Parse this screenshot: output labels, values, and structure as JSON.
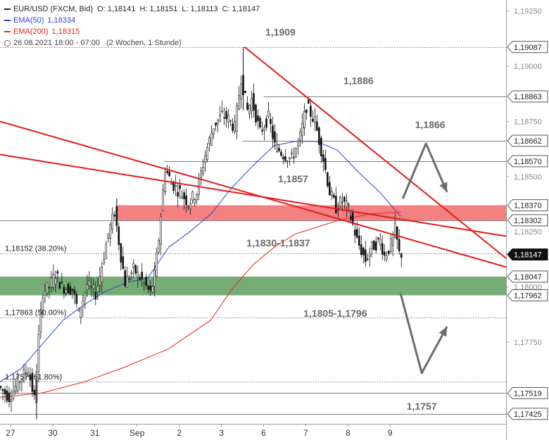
{
  "chart_data": {
    "type": "candlestick",
    "symbol": "EUR/USD (FXCM, Bid)",
    "ohlc_label": {
      "o": "O: 1,18141",
      "h": "H: 1,18151",
      "l": "L: 1,18113",
      "c": "C: 1,18147"
    },
    "indicators": [
      {
        "name": "EMA(50)",
        "value": "1,18334",
        "color": "#2a3fd6"
      },
      {
        "name": "EMA(200)",
        "value": "1,18315",
        "color": "#e8251a"
      }
    ],
    "period_text": "26.08.2021 18:00 - 07:00   (2 Wochen, 1 Stunde)",
    "ylim": [
      1.1738,
      1.193
    ],
    "xlim": [
      0,
      240
    ],
    "x_ticks": [
      {
        "x": 5,
        "label": "27"
      },
      {
        "x": 25,
        "label": "30"
      },
      {
        "x": 45,
        "label": "31"
      },
      {
        "x": 65,
        "label": "Sep"
      },
      {
        "x": 85,
        "label": "2"
      },
      {
        "x": 105,
        "label": "3"
      },
      {
        "x": 125,
        "label": "6"
      },
      {
        "x": 145,
        "label": "7"
      },
      {
        "x": 165,
        "label": "8"
      },
      {
        "x": 185,
        "label": "9"
      }
    ],
    "y_ticks": [
      {
        "y": 1.1925,
        "label": "1,19250"
      },
      {
        "y": 1.19,
        "label": "1,19000"
      },
      {
        "y": 1.1875,
        "label": "1,18750"
      },
      {
        "y": 1.185,
        "label": "1,18500"
      },
      {
        "y": 1.1825,
        "label": "1,18250"
      },
      {
        "y": 1.18,
        "label": "1,18000"
      },
      {
        "y": 1.1775,
        "label": "1,17750"
      }
    ],
    "price_tags": [
      {
        "y": 1.19087,
        "label": "1,19087",
        "style": "level"
      },
      {
        "y": 1.18863,
        "label": "1,18863",
        "style": "level"
      },
      {
        "y": 1.18662,
        "label": "1,18662",
        "style": "level"
      },
      {
        "y": 1.1857,
        "label": "1,18570",
        "style": "level"
      },
      {
        "y": 1.1837,
        "label": "1,18370",
        "style": "level"
      },
      {
        "y": 1.18302,
        "label": "1,18302",
        "style": "level"
      },
      {
        "y": 1.18147,
        "label": "1,18147",
        "style": "current"
      },
      {
        "y": 1.18047,
        "label": "1,18047",
        "style": "level"
      },
      {
        "y": 1.17962,
        "label": "1,17962",
        "style": "level"
      },
      {
        "y": 1.17519,
        "label": "1,17519",
        "style": "level"
      },
      {
        "y": 1.17425,
        "label": "1,17425",
        "style": "level"
      }
    ],
    "zones": [
      {
        "y1": 1.1837,
        "y2": 1.18302,
        "x1": 55,
        "color": "#f26b6b"
      },
      {
        "y1": 1.18047,
        "y2": 1.17962,
        "x1": 0,
        "color": "#5e9e5e"
      }
    ],
    "levels": [
      {
        "y": 1.19087,
        "x1": 0,
        "style": "dotted"
      },
      {
        "y": 1.18863,
        "x1": 125,
        "style": "solid"
      },
      {
        "y": 1.18662,
        "x1": 115,
        "style": "solid"
      },
      {
        "y": 1.1857,
        "x1": 78,
        "style": "solid"
      },
      {
        "y": 1.18302,
        "x1": 0,
        "style": "solid"
      },
      {
        "y": 1.18152,
        "x1": 0,
        "style": "dotted"
      },
      {
        "y": 1.17863,
        "x1": 0,
        "style": "dotted"
      },
      {
        "y": 1.1757,
        "x1": 0,
        "style": "dotted"
      },
      {
        "y": 1.17519,
        "x1": 0,
        "style": "solid"
      },
      {
        "y": 1.17425,
        "x1": 0,
        "style": "solid"
      }
    ],
    "annotations": [
      {
        "x": 133,
        "y": 1.19155,
        "text": "1,1909"
      },
      {
        "x": 170,
        "y": 1.18935,
        "text": "1,1886"
      },
      {
        "x": 204,
        "y": 1.18735,
        "text": "1,1866"
      },
      {
        "x": 139,
        "y": 1.1849,
        "text": "1,1857"
      },
      {
        "x": 132,
        "y": 1.182,
        "text": "1,1830-1,1837"
      },
      {
        "x": 159,
        "y": 1.1788,
        "text": "1,1805-1,1796"
      },
      {
        "x": 200,
        "y": 1.1746,
        "text": "1,1757"
      }
    ],
    "fib_labels": [
      {
        "x": 1,
        "y": 1.18175,
        "text": "1,18152 (38.20%)"
      },
      {
        "x": 1,
        "y": 1.17886,
        "text": "1,17863 (50.00%)"
      },
      {
        "x": 1,
        "y": 1.17593,
        "text": "1,1757 (61.80%)"
      }
    ],
    "trendlines": [
      {
        "points": [
          [
            0,
            1.1875
          ],
          [
            240,
            1.1809
          ]
        ]
      },
      {
        "points": [
          [
            0,
            1.186
          ],
          [
            240,
            1.1823
          ]
        ]
      },
      {
        "points": [
          [
            116,
            1.19087
          ],
          [
            240,
            1.1813
          ]
        ]
      }
    ],
    "arrows": [
      {
        "points": [
          [
            191,
            1.184
          ],
          [
            202,
            1.1865
          ],
          [
            212,
            1.1843
          ]
        ]
      },
      {
        "points": [
          [
            190,
            1.1797
          ],
          [
            200,
            1.1761
          ],
          [
            212,
            1.1782
          ]
        ]
      }
    ],
    "ema50": [
      [
        0,
        1.1757
      ],
      [
        10,
        1.1763
      ],
      [
        20,
        1.1774
      ],
      [
        30,
        1.1785
      ],
      [
        40,
        1.1792
      ],
      [
        50,
        1.1798
      ],
      [
        60,
        1.1802
      ],
      [
        70,
        1.1804
      ],
      [
        80,
        1.1818
      ],
      [
        90,
        1.1825
      ],
      [
        100,
        1.1833
      ],
      [
        110,
        1.1845
      ],
      [
        120,
        1.1855
      ],
      [
        130,
        1.1864
      ],
      [
        140,
        1.1866
      ],
      [
        150,
        1.1866
      ],
      [
        160,
        1.1862
      ],
      [
        170,
        1.1852
      ],
      [
        180,
        1.1843
      ],
      [
        190,
        1.1832
      ]
    ],
    "ema200": [
      [
        0,
        1.175
      ],
      [
        20,
        1.1752
      ],
      [
        40,
        1.1757
      ],
      [
        60,
        1.1764
      ],
      [
        80,
        1.1772
      ],
      [
        100,
        1.1785
      ],
      [
        110,
        1.1799
      ],
      [
        120,
        1.181
      ],
      [
        130,
        1.1818
      ],
      [
        140,
        1.1824
      ],
      [
        160,
        1.183
      ],
      [
        175,
        1.1833
      ],
      [
        190,
        1.1834
      ]
    ],
    "price_path": [
      [
        0,
        1.1755
      ],
      [
        5,
        1.175
      ],
      [
        10,
        1.1758
      ],
      [
        14,
        1.1763
      ],
      [
        17,
        1.1749
      ],
      [
        19,
        1.1777
      ],
      [
        21,
        1.1798
      ],
      [
        24,
        1.18
      ],
      [
        27,
        1.1806
      ],
      [
        30,
        1.18
      ],
      [
        35,
        1.1799
      ],
      [
        38,
        1.1788
      ],
      [
        42,
        1.1801
      ],
      [
        46,
        1.1797
      ],
      [
        48,
        1.1805
      ],
      [
        52,
        1.1824
      ],
      [
        55,
        1.1834
      ],
      [
        58,
        1.1814
      ],
      [
        60,
        1.1802
      ],
      [
        64,
        1.1808
      ],
      [
        68,
        1.1803
      ],
      [
        72,
        1.1797
      ],
      [
        74,
        1.1805
      ],
      [
        76,
        1.1822
      ],
      [
        79,
        1.1854
      ],
      [
        82,
        1.1847
      ],
      [
        87,
        1.1842
      ],
      [
        90,
        1.1838
      ],
      [
        94,
        1.1843
      ],
      [
        98,
        1.186
      ],
      [
        102,
        1.1873
      ],
      [
        106,
        1.1878
      ],
      [
        109,
        1.1876
      ],
      [
        112,
        1.1872
      ],
      [
        115,
        1.1895
      ],
      [
        118,
        1.188
      ],
      [
        120,
        1.1885
      ],
      [
        124,
        1.187
      ],
      [
        128,
        1.1877
      ],
      [
        131,
        1.1864
      ],
      [
        135,
        1.186
      ],
      [
        139,
        1.1858
      ],
      [
        143,
        1.1868
      ],
      [
        146,
        1.1882
      ],
      [
        150,
        1.1875
      ],
      [
        154,
        1.1858
      ],
      [
        157,
        1.1843
      ],
      [
        160,
        1.1836
      ],
      [
        163,
        1.1839
      ],
      [
        166,
        1.1835
      ],
      [
        170,
        1.1821
      ],
      [
        174,
        1.1812
      ],
      [
        177,
        1.1818
      ],
      [
        181,
        1.1821
      ],
      [
        183,
        1.1814
      ],
      [
        186,
        1.1819
      ],
      [
        188,
        1.1826
      ],
      [
        190,
        1.1815
      ]
    ]
  }
}
